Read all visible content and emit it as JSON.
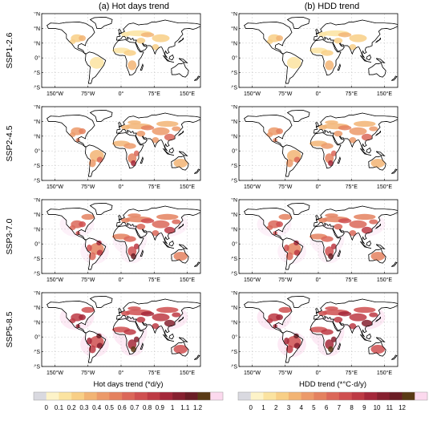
{
  "columns": [
    {
      "id": "a",
      "title": "(a) Hot days trend"
    },
    {
      "id": "b",
      "title": "(b) HDD trend"
    }
  ],
  "rows": [
    {
      "label": "SSP1-2.6",
      "intensity": 1
    },
    {
      "label": "SSP2-4.5",
      "intensity": 2
    },
    {
      "label": "SSP3-7.0",
      "intensity": 3
    },
    {
      "label": "SSP5-8.5",
      "intensity": 4
    }
  ],
  "axes": {
    "lat_ticks": [
      "90°N",
      "60°N",
      "30°N",
      "0°",
      "30°S",
      "60°S"
    ],
    "lon_ticks": [
      "150°W",
      "75°W",
      "0°",
      "75°E",
      "150°E"
    ]
  },
  "colorbars": [
    {
      "name": "hot-days",
      "title": "Hot days trend (*d/y)",
      "labels": [
        "0",
        "0.1",
        "0.2",
        "0.3",
        "0.4",
        "0.5",
        "0.6",
        "0.7",
        "0.8",
        "0.9",
        "1",
        "1.1",
        "1.2"
      ],
      "colors": [
        "#d9d9e0",
        "#fdf3c8",
        "#fbe3a0",
        "#f8cf86",
        "#f2b474",
        "#ec9a6a",
        "#e4815f",
        "#db6759",
        "#cf4f50",
        "#bd3a44",
        "#a4283a",
        "#86202f",
        "#6a1d25",
        "#5a3a15",
        "#fcd9ee"
      ]
    },
    {
      "name": "hdd",
      "title": "HDD trend (*°C·d/y)",
      "labels": [
        "0",
        "1",
        "2",
        "3",
        "4",
        "5",
        "6",
        "7",
        "8",
        "9",
        "10",
        "11",
        "12"
      ],
      "colors": [
        "#d9d9e0",
        "#fdf3c8",
        "#fbe3a0",
        "#f8cf86",
        "#f2b474",
        "#ec9a6a",
        "#e4815f",
        "#db6759",
        "#cf4f50",
        "#bd3a44",
        "#a4283a",
        "#86202f",
        "#6a1d25",
        "#5a3a15",
        "#fcd9ee"
      ]
    }
  ]
}
